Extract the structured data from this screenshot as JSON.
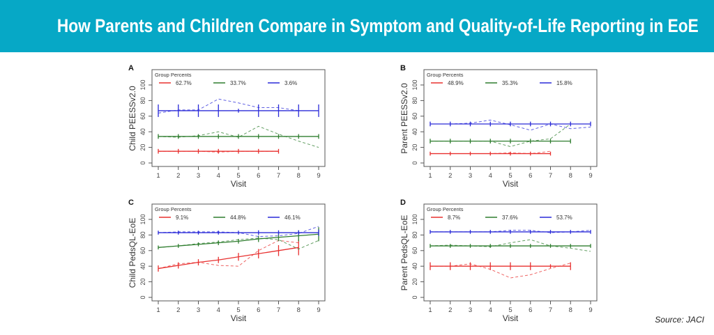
{
  "header": {
    "title": "How Parents and Children Compare in Symptom and Quality-of-Life Reporting in EoE"
  },
  "source": "Source: JACI",
  "colors": {
    "banner": "#06a8c6",
    "red": "#e8302f",
    "green": "#2e7d2e",
    "blue": "#2a2ad8"
  },
  "chart_data": [
    {
      "panel": "A",
      "type": "line",
      "ylabel": "Child PEESSv2.0",
      "xlabel": "Visit",
      "legend_title": "Group Percents",
      "legend_placement": "top-left",
      "xlim": [
        1,
        9
      ],
      "ylim": [
        0,
        100
      ],
      "xticks": [
        1,
        2,
        3,
        4,
        5,
        6,
        7,
        8,
        9
      ],
      "yticks": [
        0,
        20,
        40,
        60,
        80,
        100
      ],
      "series": [
        {
          "name": "62.7%",
          "color": "red",
          "visits": [
            1,
            2,
            3,
            4,
            5,
            6,
            7
          ],
          "fitted": [
            15,
            15,
            15,
            15,
            15,
            15,
            15
          ],
          "error": [
            3,
            3,
            3,
            3,
            3,
            3,
            3
          ],
          "observed": [
            15,
            15,
            15,
            14,
            15,
            15,
            15
          ]
        },
        {
          "name": "33.7%",
          "color": "green",
          "visits": [
            1,
            2,
            3,
            4,
            5,
            6,
            7,
            8,
            9
          ],
          "fitted": [
            34,
            34,
            34,
            34,
            34,
            34,
            34,
            34,
            34
          ],
          "error": [
            3,
            3,
            3,
            3,
            3,
            3,
            3,
            3,
            3
          ],
          "observed": [
            34,
            33,
            35,
            40,
            33,
            47,
            37,
            28,
            20
          ]
        },
        {
          "name": "3.6%",
          "color": "blue",
          "visits": [
            1,
            2,
            3,
            4,
            5,
            6,
            7,
            8,
            9
          ],
          "fitted": [
            67,
            67,
            67,
            67,
            67,
            67,
            67,
            67,
            67
          ],
          "error": [
            8,
            8,
            8,
            8,
            0,
            8,
            8,
            8,
            8
          ],
          "observed": [
            64,
            68,
            68,
            82,
            77,
            71,
            71,
            67,
            67
          ]
        }
      ]
    },
    {
      "panel": "B",
      "type": "line",
      "ylabel": "Parent PEESSv2.0",
      "xlabel": "Visit",
      "legend_title": "Group Percents",
      "legend_placement": "top-left",
      "xlim": [
        1,
        9
      ],
      "ylim": [
        0,
        100
      ],
      "xticks": [
        1,
        2,
        3,
        4,
        5,
        6,
        7,
        8,
        9
      ],
      "yticks": [
        0,
        20,
        40,
        60,
        80,
        100
      ],
      "series": [
        {
          "name": "48.9%",
          "color": "red",
          "visits": [
            1,
            2,
            3,
            4,
            5,
            6,
            7
          ],
          "fitted": [
            12,
            12,
            12,
            12,
            12,
            12,
            12
          ],
          "error": [
            2,
            2,
            2,
            2,
            2,
            2,
            2
          ],
          "observed": [
            12,
            12,
            12,
            12,
            13,
            12,
            15
          ]
        },
        {
          "name": "35.3%",
          "color": "green",
          "visits": [
            1,
            2,
            3,
            4,
            5,
            6,
            7,
            8
          ],
          "fitted": [
            28,
            28,
            28,
            28,
            28,
            28,
            28,
            28
          ],
          "error": [
            3,
            3,
            3,
            3,
            3,
            3,
            3,
            3
          ],
          "observed": [
            28,
            28,
            28,
            28,
            21,
            28,
            31,
            50
          ]
        },
        {
          "name": "15.8%",
          "color": "blue",
          "visits": [
            1,
            2,
            3,
            4,
            5,
            6,
            7,
            8,
            9
          ],
          "fitted": [
            50,
            50,
            50,
            50,
            50,
            50,
            50,
            50,
            50
          ],
          "error": [
            3,
            3,
            3,
            3,
            3,
            3,
            3,
            3,
            3
          ],
          "observed": [
            50,
            50,
            51,
            55,
            49,
            42,
            50,
            44,
            46
          ]
        }
      ]
    },
    {
      "panel": "C",
      "type": "line",
      "ylabel": "Child PedsQL-EoE",
      "xlabel": "Visit",
      "legend_title": "Group Percents",
      "legend_placement": "top-left",
      "xlim": [
        1,
        9
      ],
      "ylim": [
        0,
        100
      ],
      "xticks": [
        1,
        2,
        3,
        4,
        5,
        6,
        7,
        8,
        9
      ],
      "yticks": [
        0,
        20,
        40,
        60,
        80,
        100
      ],
      "series": [
        {
          "name": "9.1%",
          "color": "red",
          "visits": [
            1,
            2,
            3,
            4,
            5,
            6,
            7,
            8
          ],
          "fitted": [
            37,
            41,
            45,
            48,
            52,
            56,
            60,
            64
          ],
          "error": [
            4,
            4,
            4,
            4,
            5,
            6,
            7,
            10
          ],
          "observed": [
            37,
            43,
            45,
            41,
            40,
            60,
            73,
            70
          ]
        },
        {
          "name": "44.8%",
          "color": "green",
          "visits": [
            1,
            2,
            3,
            4,
            5,
            6,
            7,
            8,
            9
          ],
          "fitted": [
            64,
            66,
            68,
            70,
            72,
            75,
            77,
            79,
            81
          ],
          "error": [
            2,
            2,
            2,
            3,
            3,
            4,
            5,
            7,
            9
          ],
          "observed": [
            64,
            66,
            69,
            71,
            74,
            76,
            74,
            62,
            73
          ]
        },
        {
          "name": "46.1%",
          "color": "blue",
          "visits": [
            1,
            2,
            3,
            4,
            5,
            6,
            7,
            8,
            9
          ],
          "fitted": [
            83,
            83,
            83,
            83,
            83,
            83,
            83,
            83,
            83
          ],
          "error": [
            2,
            2,
            2,
            2,
            2,
            3,
            3,
            3,
            4
          ],
          "observed": [
            83,
            84,
            84,
            84,
            83,
            78,
            79,
            82,
            91
          ]
        }
      ]
    },
    {
      "panel": "D",
      "type": "line",
      "ylabel": "Parent PedsQL-EoE",
      "xlabel": "Visit",
      "legend_title": "Group Percents",
      "legend_placement": "top-left",
      "xlim": [
        1,
        9
      ],
      "ylim": [
        0,
        100
      ],
      "xticks": [
        1,
        2,
        3,
        4,
        5,
        6,
        7,
        8,
        9
      ],
      "yticks": [
        0,
        20,
        40,
        60,
        80,
        100
      ],
      "series": [
        {
          "name": "8.7%",
          "color": "red",
          "visits": [
            1,
            2,
            3,
            4,
            5,
            6,
            7,
            8
          ],
          "fitted": [
            40,
            40,
            40,
            40,
            40,
            40,
            40,
            40
          ],
          "error": [
            5,
            5,
            5,
            5,
            5,
            5,
            0,
            5
          ],
          "observed": [
            40,
            40,
            43,
            36,
            25,
            29,
            37,
            44
          ]
        },
        {
          "name": "37.6%",
          "color": "green",
          "visits": [
            1,
            2,
            3,
            4,
            5,
            6,
            7,
            8,
            9
          ],
          "fitted": [
            66,
            66,
            66,
            66,
            66,
            66,
            66,
            66,
            66
          ],
          "error": [
            2,
            2,
            2,
            2,
            2,
            2,
            2,
            2,
            2
          ],
          "observed": [
            66,
            67,
            66,
            65,
            70,
            74,
            66,
            63,
            59
          ]
        },
        {
          "name": "53.7%",
          "color": "blue",
          "visits": [
            1,
            2,
            3,
            4,
            5,
            6,
            7,
            8,
            9
          ],
          "fitted": [
            84,
            84,
            84,
            84,
            84,
            84,
            84,
            84,
            84
          ],
          "error": [
            2,
            2,
            2,
            2,
            2,
            2,
            2,
            2,
            2
          ],
          "observed": [
            84,
            84,
            84,
            84,
            86,
            86,
            83,
            84,
            86
          ]
        }
      ]
    }
  ]
}
